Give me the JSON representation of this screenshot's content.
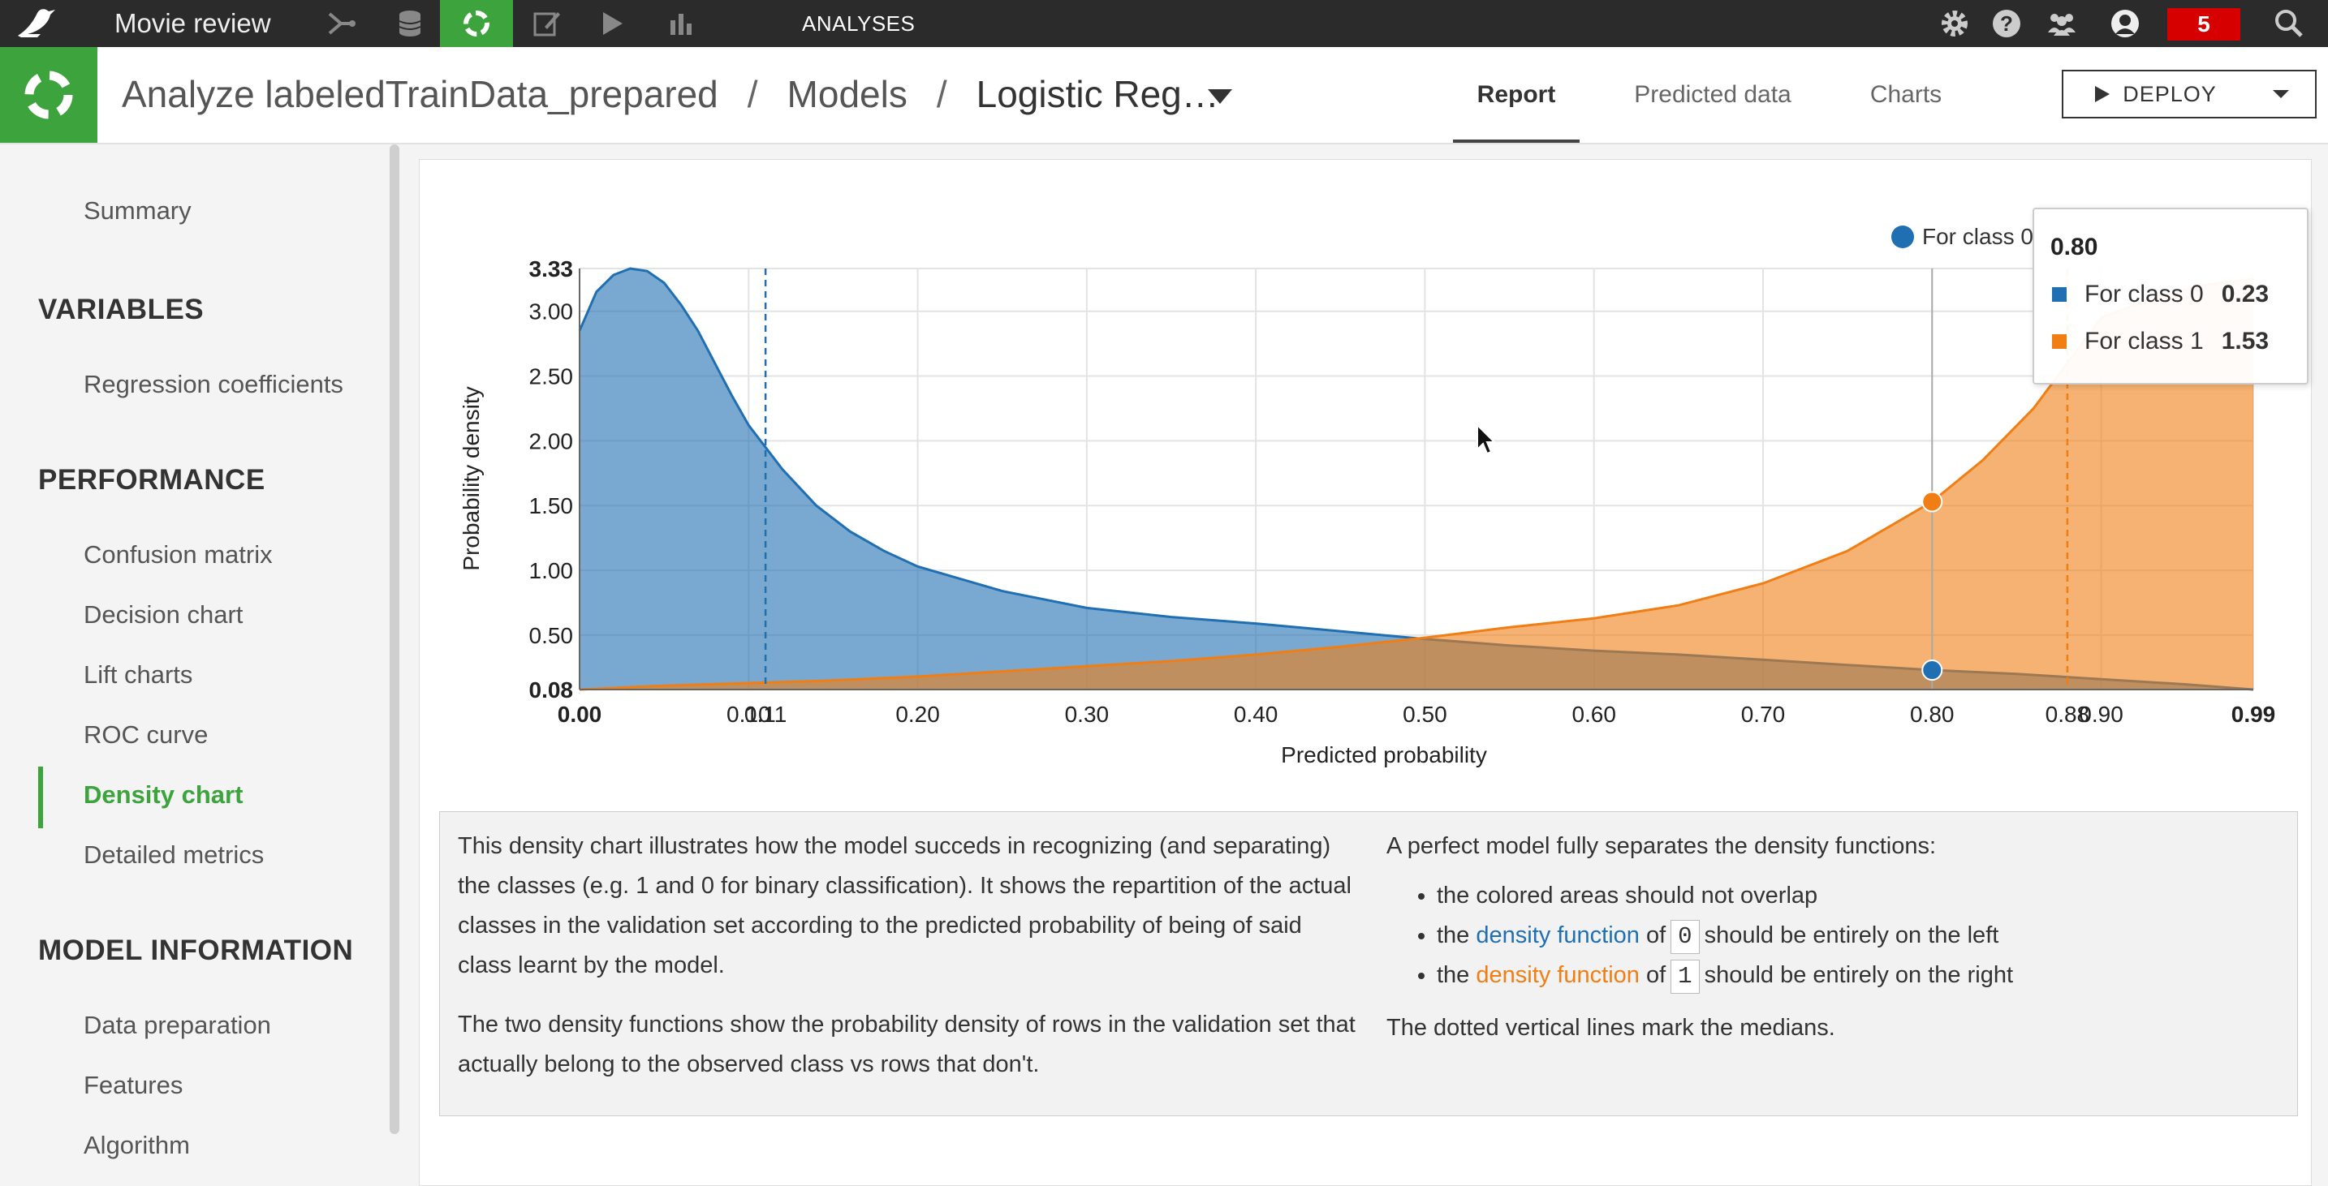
{
  "topbar": {
    "project": "Movie review",
    "section_label": "ANALYSES",
    "notifications": "5",
    "icons": [
      "flow-icon",
      "datasets-icon",
      "analyses-icon",
      "notebooks-icon",
      "run-icon",
      "dashboards-icon",
      "gear-icon",
      "help-icon",
      "people-icon",
      "user-avatar-icon",
      "search-icon"
    ]
  },
  "header": {
    "crumb1": "Analyze labeledTrainData_prepared",
    "crumb2": "Models",
    "crumb3": "Logistic Reg…",
    "separator": "/",
    "tabs": [
      "Report",
      "Predicted data",
      "Charts"
    ],
    "deploy_label": "DEPLOY"
  },
  "sidebar": {
    "summary": "Summary",
    "sections": [
      {
        "title": "VARIABLES",
        "items": [
          "Regression coefficients"
        ]
      },
      {
        "title": "PERFORMANCE",
        "items": [
          "Confusion matrix",
          "Decision chart",
          "Lift charts",
          "ROC curve",
          "Density chart",
          "Detailed metrics"
        ]
      },
      {
        "title": "MODEL INFORMATION",
        "items": [
          "Data preparation",
          "Features",
          "Algorithm"
        ]
      }
    ],
    "active_item": "Density chart"
  },
  "chart_data": {
    "type": "area",
    "xlabel": "Predicted probability",
    "ylabel": "Probability density",
    "xlim": [
      0.0,
      0.99
    ],
    "ylim": [
      0.08,
      3.33
    ],
    "x_ticks": [
      "0.00",
      "0.10",
      "0.20",
      "0.30",
      "0.40",
      "0.50",
      "0.60",
      "0.70",
      "0.80",
      "0.90",
      "0.99"
    ],
    "y_ticks": [
      "0.08",
      "0.50",
      "1.00",
      "1.50",
      "2.00",
      "2.50",
      "3.00",
      "3.33"
    ],
    "grid": true,
    "colors": {
      "class0": "#1f6fb2",
      "class1": "#f07e14"
    },
    "series": [
      {
        "name": "For class 0",
        "x": [
          0.0,
          0.01,
          0.02,
          0.03,
          0.04,
          0.05,
          0.06,
          0.07,
          0.08,
          0.09,
          0.1,
          0.12,
          0.14,
          0.16,
          0.18,
          0.2,
          0.25,
          0.3,
          0.35,
          0.4,
          0.45,
          0.5,
          0.55,
          0.6,
          0.65,
          0.7,
          0.75,
          0.8,
          0.85,
          0.9,
          0.95,
          0.99
        ],
        "values": [
          2.85,
          3.15,
          3.28,
          3.33,
          3.31,
          3.22,
          3.05,
          2.85,
          2.6,
          2.35,
          2.12,
          1.78,
          1.5,
          1.3,
          1.15,
          1.03,
          0.84,
          0.71,
          0.64,
          0.59,
          0.53,
          0.47,
          0.42,
          0.38,
          0.35,
          0.31,
          0.27,
          0.23,
          0.2,
          0.16,
          0.12,
          0.08
        ]
      },
      {
        "name": "For class 1",
        "x": [
          0.0,
          0.05,
          0.1,
          0.15,
          0.2,
          0.25,
          0.3,
          0.35,
          0.4,
          0.45,
          0.5,
          0.55,
          0.6,
          0.65,
          0.7,
          0.75,
          0.8,
          0.83,
          0.86,
          0.88,
          0.9,
          0.93,
          0.96,
          0.99
        ],
        "values": [
          0.08,
          0.11,
          0.13,
          0.15,
          0.18,
          0.22,
          0.26,
          0.3,
          0.35,
          0.41,
          0.48,
          0.56,
          0.63,
          0.73,
          0.9,
          1.15,
          1.53,
          1.85,
          2.25,
          2.6,
          2.95,
          3.1,
          3.2,
          3.25
        ]
      }
    ],
    "medians": [
      {
        "class": "0",
        "x": 0.11,
        "label": "0.11"
      },
      {
        "class": "1",
        "x": 0.88,
        "label": "0.88"
      }
    ],
    "hover": {
      "x": 0.8,
      "values": [
        0.23,
        1.53
      ]
    }
  },
  "legend": {
    "label": "For class 0"
  },
  "tooltip": {
    "header": "0.80",
    "rows": [
      {
        "label": "For class 0",
        "value": "0.23"
      },
      {
        "label": "For class 1",
        "value": "1.53"
      }
    ]
  },
  "info": {
    "p1": "This density chart illustrates how the model succeds in recognizing (and separating) the classes (e.g. 1 and 0 for binary classification). It shows the repartition of the actual classes in the validation set according to the predicted probability of being of said class learnt by the model.",
    "p2": "The two density functions show the probability density of rows in the validation set that actually belong to the observed class vs rows that don't.",
    "intro": "A perfect model fully separates the density functions:",
    "bullet1": "the colored areas should not overlap",
    "the": "the",
    "density_function": "density function",
    "of": "of",
    "code0": "0",
    "code1": "1",
    "left_tail": "should be entirely on the left",
    "right_tail": "should be entirely on the right",
    "note": "The dotted vertical lines mark the medians."
  }
}
